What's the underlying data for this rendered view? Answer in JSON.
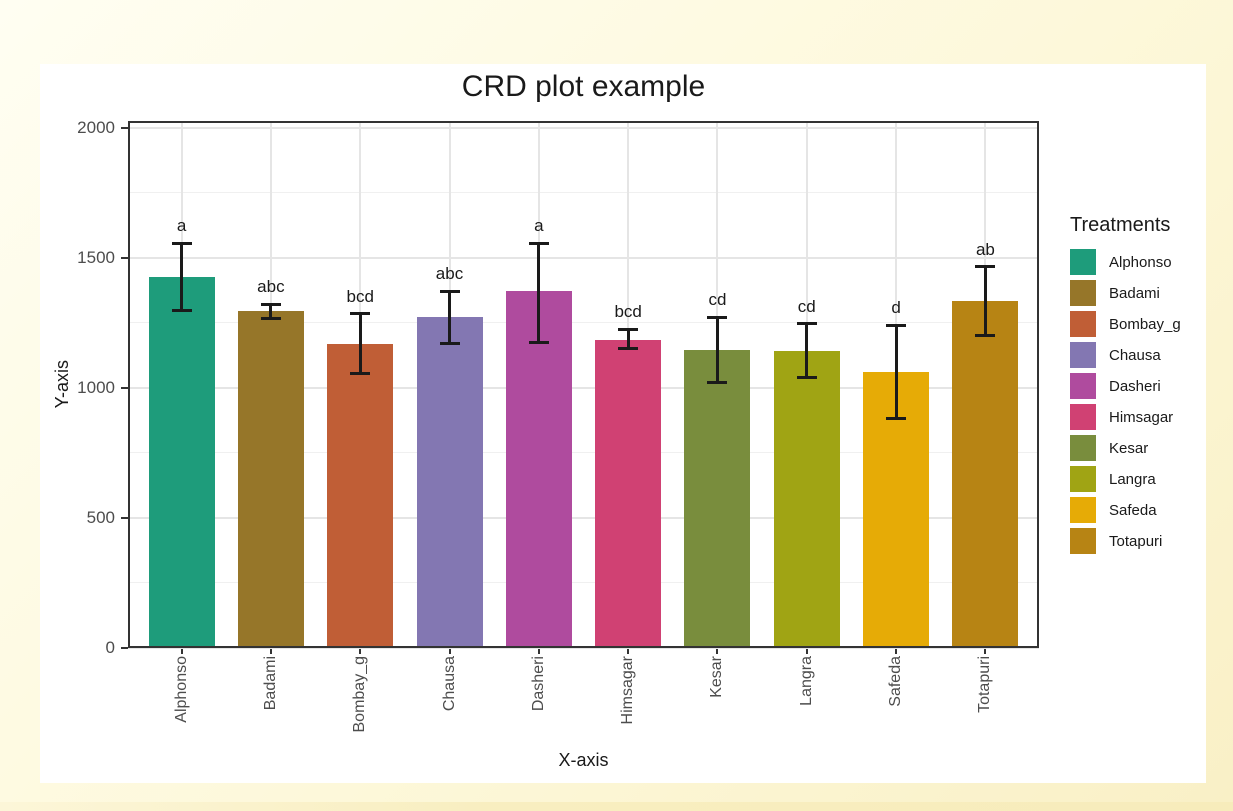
{
  "page": {
    "outer_background": "#FDF8DA",
    "figure_background": "#FFFFFF",
    "panel_border_color": "#333333",
    "gridline_major_color": "#E5E5E5",
    "gridline_minor_color": "#F0F0F0",
    "errorbar_color": "#1A1A1A",
    "tick_label_color": "#4D4D4D",
    "text_color": "#1A1A1A"
  },
  "chart_data": {
    "type": "bar",
    "title": "CRD plot example",
    "xlabel": "X-axis",
    "ylabel": "Y-axis",
    "legend_title": "Treatments",
    "legend_position": "right",
    "grid": true,
    "ylim": [
      0,
      2025
    ],
    "yticks": [
      0,
      500,
      1000,
      1500,
      2000
    ],
    "ytick_labels": [
      "0",
      "500",
      "1000",
      "1500",
      "2000"
    ],
    "yticks_minor": [
      250,
      750,
      1250,
      1750
    ],
    "categories": [
      "Alphonso",
      "Badami",
      "Bombay_g",
      "Chausa",
      "Dasheri",
      "Himsagar",
      "Kesar",
      "Langra",
      "Safeda",
      "Totapuri"
    ],
    "values": [
      1425,
      1295,
      1170,
      1270,
      1370,
      1185,
      1145,
      1140,
      1060,
      1335
    ],
    "error_low": [
      1295,
      1265,
      1055,
      1170,
      1175,
      1150,
      1020,
      1040,
      880,
      1200
    ],
    "error_high": [
      1555,
      1320,
      1285,
      1370,
      1555,
      1225,
      1270,
      1245,
      1240,
      1465
    ],
    "sig_letters": [
      "a",
      "abc",
      "bcd",
      "abc",
      "a",
      "bcd",
      "cd",
      "cd",
      "d",
      "ab"
    ],
    "colors": [
      "#1E9C7B",
      "#967629",
      "#C05E36",
      "#8377B2",
      "#AF4B9E",
      "#D04173",
      "#798D3D",
      "#A0A414",
      "#E6AB06",
      "#B78414"
    ]
  }
}
